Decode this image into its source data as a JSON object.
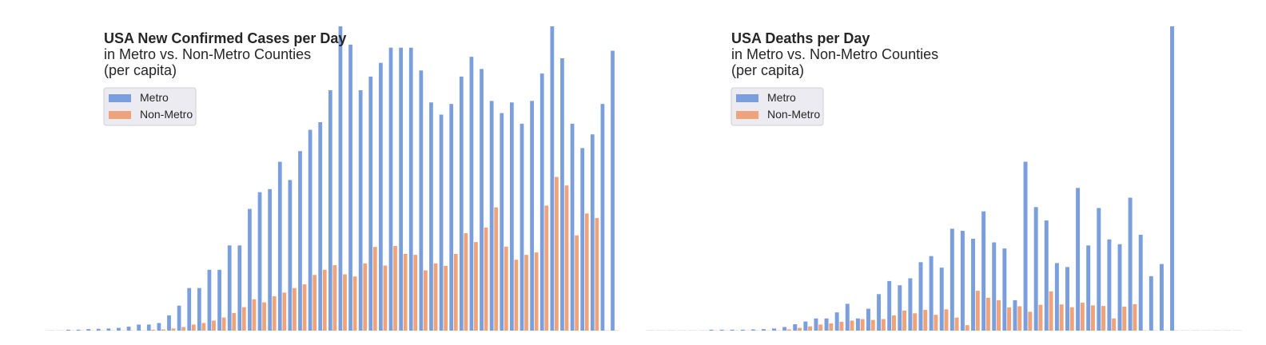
{
  "colors": {
    "metro": "#7b9fdc",
    "nonmetro": "#efa37b",
    "legend_bg": "#ecebf1",
    "legend_border": "#cfcfd6"
  },
  "chart_data": [
    {
      "type": "bar",
      "title": "USA New Confirmed Cases per Day",
      "subtitle_lines": [
        "in Metro vs. Non-Metro Counties",
        "(per capita)"
      ],
      "legend": "top-left",
      "grid": false,
      "x_count": 57,
      "ylim": [
        0,
        1.0
      ],
      "series": [
        {
          "name": "Metro",
          "values": [
            0,
            0,
            0.001,
            0.003,
            0.005,
            0.006,
            0.007,
            0.009,
            0.013,
            0.02,
            0.02,
            0.025,
            0.05,
            0.082,
            0.14,
            0.14,
            0.2,
            0.2,
            0.28,
            0.28,
            0.4,
            0.455,
            0.465,
            0.555,
            0.495,
            0.59,
            0.66,
            0.685,
            0.79,
            1.0,
            0.94,
            0.79,
            0.835,
            0.88,
            0.93,
            0.93,
            0.93,
            0.855,
            0.75,
            0.71,
            0.745,
            0.835,
            0.9,
            0.86,
            0.755,
            0.715,
            0.75,
            0.68,
            0.755,
            0.845,
            1.0,
            0.895,
            0.68,
            0.6,
            0.645,
            0.745,
            0.92
          ]
        },
        {
          "name": "Non-Metro",
          "values": [
            0,
            0,
            0,
            0,
            0,
            0,
            0,
            0,
            0,
            0,
            0.002,
            0.004,
            0.007,
            0.012,
            0.02,
            0.025,
            0.033,
            0.043,
            0.058,
            0.077,
            0.103,
            0.093,
            0.113,
            0.125,
            0.14,
            0.152,
            0.183,
            0.2,
            0.215,
            0.185,
            0.178,
            0.221,
            0.275,
            0.214,
            0.278,
            0.252,
            0.249,
            0.198,
            0.221,
            0.213,
            0.252,
            0.32,
            0.291,
            0.339,
            0.405,
            0.276,
            0.233,
            0.249,
            0.257,
            0.411,
            0.505,
            0.477,
            0.313,
            0.385,
            0.37,
            0.0,
            0.0
          ]
        }
      ]
    },
    {
      "type": "bar",
      "title": "USA Deaths per Day",
      "subtitle_lines": [
        "in Metro vs. Non-Metro Counties",
        "(per capita)"
      ],
      "legend": "top-left",
      "grid": false,
      "x_count": 57,
      "ylim": [
        0,
        1.0
      ],
      "series": [
        {
          "name": "Metro",
          "values": [
            0,
            0,
            0,
            0,
            0,
            0,
            0.001,
            0.002,
            0.002,
            0.003,
            0.004,
            0.005,
            0.007,
            0.012,
            0.021,
            0.03,
            0.04,
            0.04,
            0.06,
            0.088,
            0.04,
            0.072,
            0.12,
            0.163,
            0.149,
            0.172,
            0.225,
            0.245,
            0.207,
            0.335,
            0.328,
            0.302,
            0.392,
            0.29,
            0.27,
            0.1,
            0.555,
            0.406,
            0.362,
            0.222,
            0.209,
            0.469,
            0.28,
            0.403,
            0.3,
            0.284,
            0.437,
            0.315,
            0.179,
            0.219,
            1.0,
            0.0,
            0.0,
            0.0,
            0.0,
            0.0,
            0.0
          ]
        },
        {
          "name": "Non-Metro",
          "values": [
            0,
            0,
            0,
            0,
            0,
            0,
            0,
            0,
            0,
            0,
            0,
            0,
            0,
            0.004,
            0.009,
            0.014,
            0.02,
            0.024,
            0.029,
            0.033,
            0.038,
            0.035,
            0.038,
            0.05,
            0.066,
            0.057,
            0.068,
            0.052,
            0.07,
            0.043,
            0.018,
            0.131,
            0.108,
            0.1,
            0.076,
            0.08,
            0.062,
            0.085,
            0.129,
            0.086,
            0.077,
            0.092,
            0.083,
            0.081,
            0.04,
            0.079,
            0.087,
            0.0,
            0.0,
            0.0,
            0.0,
            0.0,
            0.0,
            0.0,
            0.0,
            0.0,
            0.0
          ]
        }
      ]
    }
  ]
}
